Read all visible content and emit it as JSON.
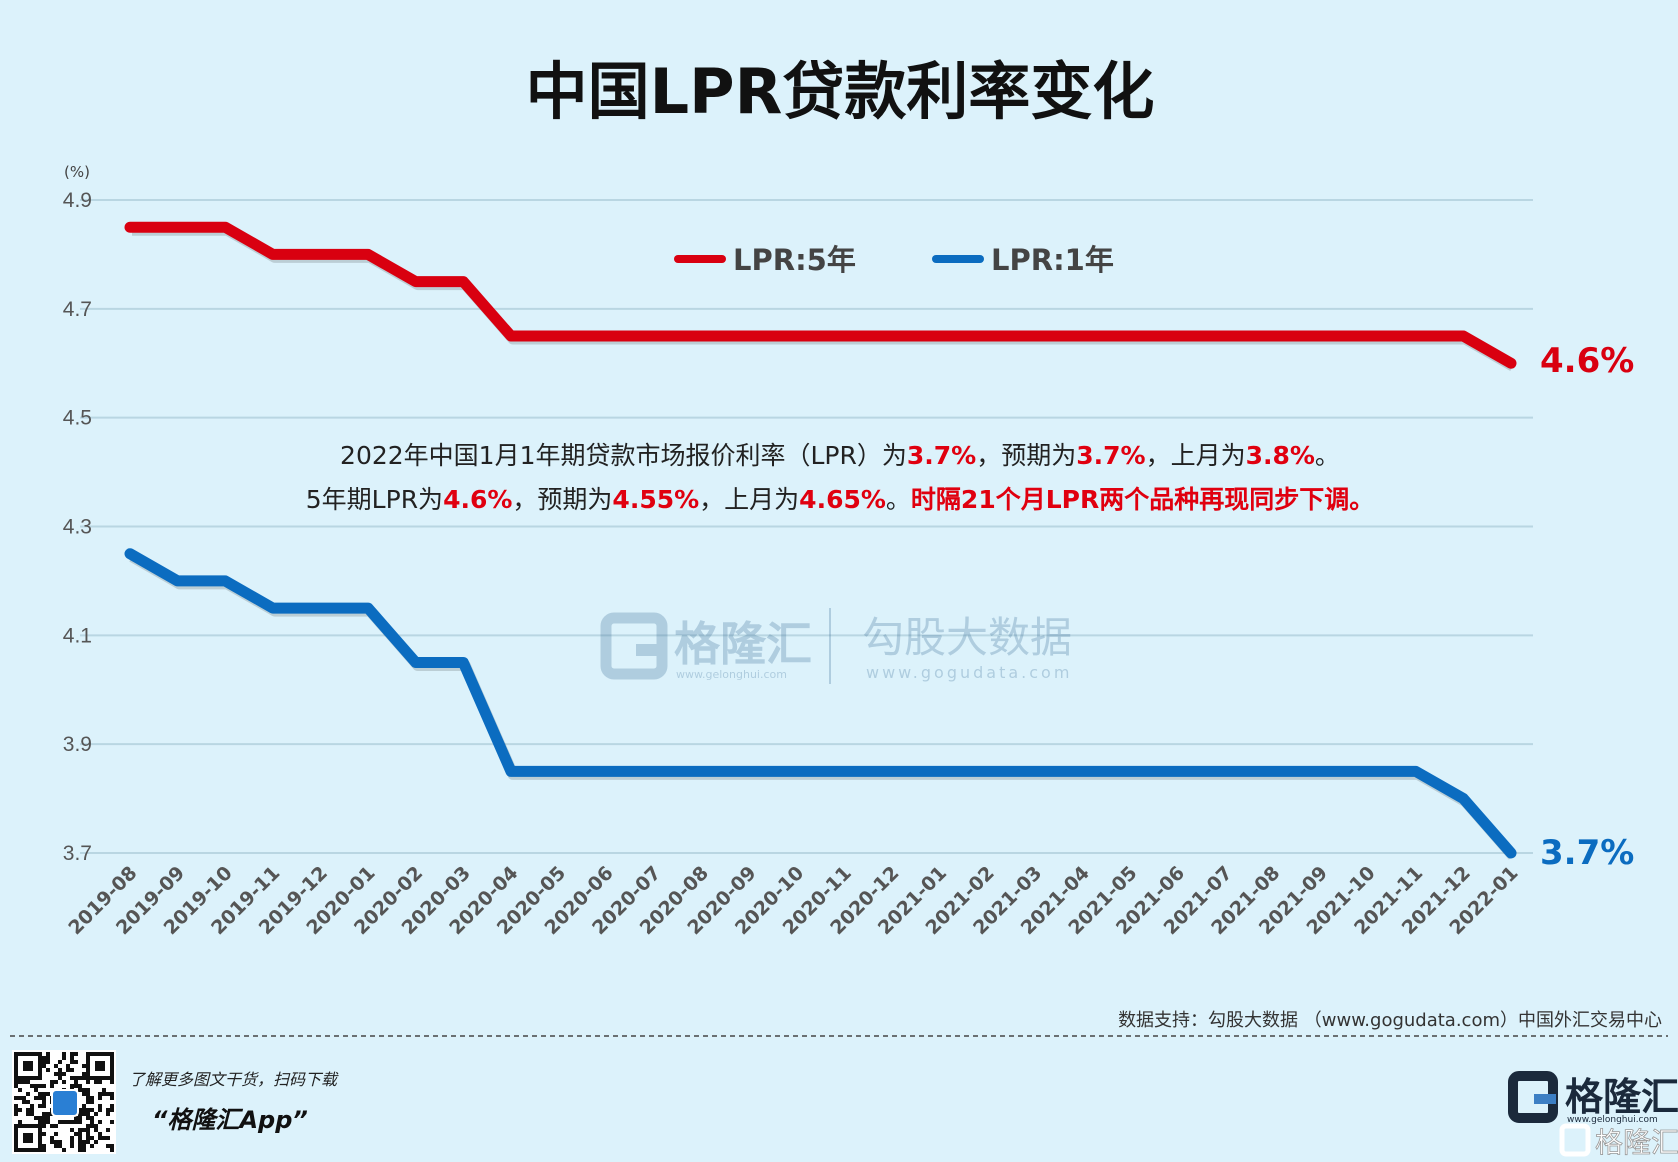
{
  "title": "中国LPR贷款利率变化",
  "colors": {
    "background": "#dcf2fb",
    "five_year": "#d90010",
    "one_year": "#0b6cc0",
    "grid": "#b9d6e2"
  },
  "chart_data": {
    "type": "line",
    "title": "中国LPR贷款利率变化",
    "ylabel": "(%)",
    "ylim": [
      3.7,
      4.9
    ],
    "yticks": [
      "4.9",
      "4.7",
      "4.5",
      "4.3",
      "4.1",
      "3.9",
      "3.7"
    ],
    "grid": true,
    "legend_position": "top-center",
    "categories": [
      "2019-08",
      "2019-09",
      "2019-10",
      "2019-11",
      "2019-12",
      "2020-01",
      "2020-02",
      "2020-03",
      "2020-04",
      "2020-05",
      "2020-06",
      "2020-07",
      "2020-08",
      "2020-09",
      "2020-10",
      "2020-11",
      "2020-12",
      "2021-01",
      "2021-02",
      "2021-03",
      "2021-04",
      "2021-05",
      "2021-06",
      "2021-07",
      "2021-08",
      "2021-09",
      "2021-10",
      "2021-11",
      "2021-12",
      "2022-01"
    ],
    "series": [
      {
        "name": "LPR:5年",
        "color": "#d90010",
        "end_label": "4.6%",
        "values": [
          4.85,
          4.85,
          4.85,
          4.8,
          4.8,
          4.8,
          4.75,
          4.75,
          4.65,
          4.65,
          4.65,
          4.65,
          4.65,
          4.65,
          4.65,
          4.65,
          4.65,
          4.65,
          4.65,
          4.65,
          4.65,
          4.65,
          4.65,
          4.65,
          4.65,
          4.65,
          4.65,
          4.65,
          4.65,
          4.6
        ]
      },
      {
        "name": "LPR:1年",
        "color": "#0b6cc0",
        "end_label": "3.7%",
        "values": [
          4.25,
          4.2,
          4.2,
          4.15,
          4.15,
          4.15,
          4.05,
          4.05,
          3.85,
          3.85,
          3.85,
          3.85,
          3.85,
          3.85,
          3.85,
          3.85,
          3.85,
          3.85,
          3.85,
          3.85,
          3.85,
          3.85,
          3.85,
          3.85,
          3.85,
          3.85,
          3.85,
          3.85,
          3.8,
          3.7
        ]
      }
    ],
    "annotation": [
      [
        {
          "t": "2022年中国1月1年期贷款市场报价利率（LPR）为"
        },
        {
          "t": "3.7%",
          "hl": true
        },
        {
          "t": "，预期为"
        },
        {
          "t": "3.7%",
          "hl": true
        },
        {
          "t": "，上月为"
        },
        {
          "t": "3.8%",
          "hl": true
        },
        {
          "t": "。"
        }
      ],
      [
        {
          "t": "5年期LPR为"
        },
        {
          "t": "4.6%",
          "hl": true
        },
        {
          "t": "，预期为"
        },
        {
          "t": "4.55%",
          "hl": true
        },
        {
          "t": "，上月为"
        },
        {
          "t": "4.65%",
          "hl": true
        },
        {
          "t": "。"
        },
        {
          "t": "时隔21个月LPR两个品种再现同步下调。",
          "hl": true
        }
      ]
    ]
  },
  "watermark": {
    "brand": "格隆汇",
    "brand_url": "www.gelonghui.com",
    "data_brand": "勾股大数据",
    "data_url": "www.gogudata.com"
  },
  "footer": {
    "source": "数据支持：勾股大数据 （www.gogudata.com）中国外汇交易中心",
    "promo": "了解更多图文干货，扫码下载",
    "app": "“格隆汇App”",
    "logo_text": "格隆汇",
    "logo_url": "www.gelonghui.com"
  }
}
